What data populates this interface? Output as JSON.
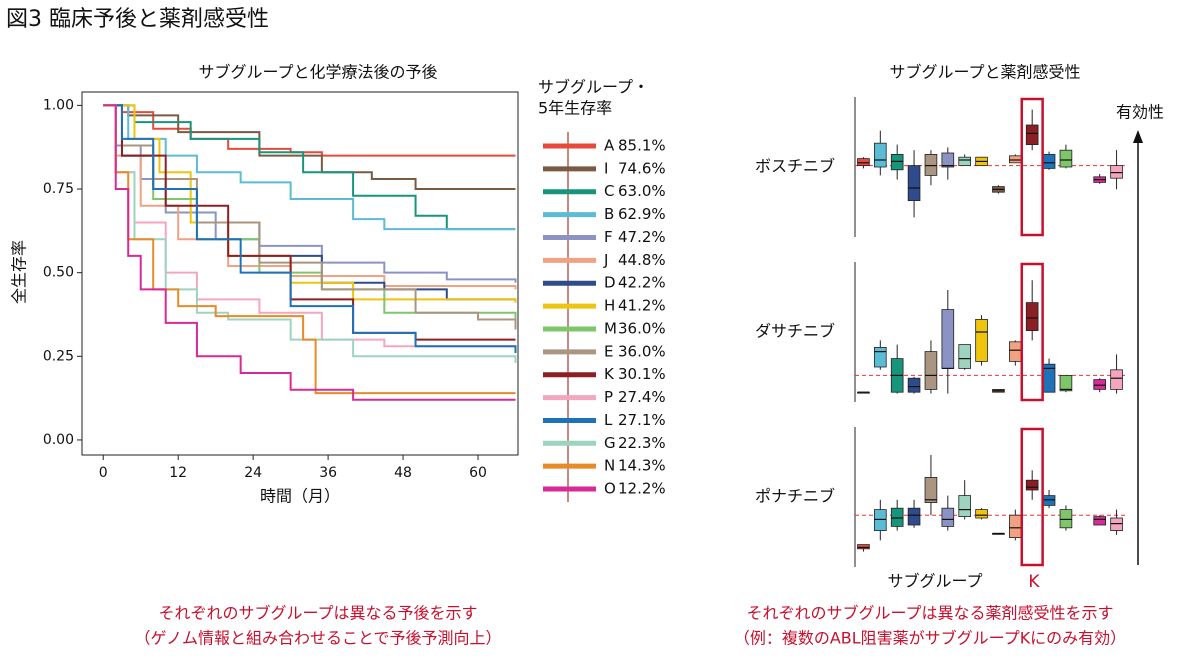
{
  "title": "図3 臨床予後と薬剤感受性",
  "chart_data": [
    {
      "type": "km",
      "title": "サブグループと化学療法後の予後",
      "xlabel": "時間（月）",
      "ylabel": "全生存率",
      "legend_title": [
        "サブグループ・",
        "5年生存率"
      ],
      "xlim": [
        -3.4,
        66.4
      ],
      "xticks": [
        0,
        12,
        24,
        36,
        48,
        60
      ],
      "ylim": [
        -0.045,
        1.04
      ],
      "yticks": [
        {
          "value": 0,
          "label": "0.00"
        },
        {
          "value": 0.25,
          "label": "0.25"
        },
        {
          "value": 0.5,
          "label": "0.50"
        },
        {
          "value": 0.75,
          "label": "0.75"
        },
        {
          "value": 1,
          "label": "1.00"
        }
      ],
      "series": [
        {
          "name": "A",
          "color": "#e8493a",
          "survival_5y": 85.1,
          "survival_5y_label": "85.1%",
          "x": [
            0,
            3,
            8,
            14,
            20,
            30,
            35,
            66
          ],
          "values": [
            1,
            0.98,
            0.93,
            0.9,
            0.87,
            0.86,
            0.85,
            0.85
          ]
        },
        {
          "name": "I",
          "color": "#7b5a43",
          "survival_5y": 74.6,
          "survival_5y_label": "74.6%",
          "x": [
            0,
            4,
            12,
            25,
            35,
            43,
            50,
            66
          ],
          "values": [
            1,
            0.97,
            0.92,
            0.85,
            0.8,
            0.78,
            0.75,
            0.75
          ]
        },
        {
          "name": "C",
          "color": "#16957a",
          "survival_5y": 63.0,
          "survival_5y_label": "63.0%",
          "x": [
            0,
            5,
            14,
            25,
            32,
            40,
            50,
            55,
            66
          ],
          "values": [
            1,
            0.95,
            0.9,
            0.86,
            0.8,
            0.73,
            0.67,
            0.63,
            0.63
          ]
        },
        {
          "name": "B",
          "color": "#5bbcd6",
          "survival_5y": 62.9,
          "survival_5y_label": "62.9%",
          "x": [
            0,
            4,
            10,
            15,
            22,
            30,
            40,
            45,
            66
          ],
          "values": [
            1,
            0.9,
            0.85,
            0.8,
            0.77,
            0.72,
            0.66,
            0.63,
            0.63
          ]
        },
        {
          "name": "F",
          "color": "#8b93c4",
          "survival_5y": 47.2,
          "survival_5y_label": "47.2%",
          "x": [
            0,
            2,
            6,
            10,
            18,
            25,
            35,
            45,
            55,
            66
          ],
          "values": [
            1,
            0.88,
            0.78,
            0.68,
            0.6,
            0.58,
            0.53,
            0.5,
            0.48,
            0.47
          ]
        },
        {
          "name": "J",
          "color": "#f0a283",
          "survival_5y": 44.8,
          "survival_5y_label": "44.8%",
          "x": [
            0,
            2,
            6,
            12,
            20,
            30,
            45,
            66
          ],
          "values": [
            1,
            0.85,
            0.7,
            0.6,
            0.52,
            0.49,
            0.46,
            0.45
          ]
        },
        {
          "name": "D",
          "color": "#2f4b8c",
          "survival_5y": 42.2,
          "survival_5y_label": "42.2%",
          "x": [
            0,
            3,
            8,
            15,
            25,
            35,
            45,
            55,
            66
          ],
          "values": [
            1,
            0.85,
            0.75,
            0.65,
            0.55,
            0.47,
            0.45,
            0.42,
            0.42
          ]
        },
        {
          "name": "H",
          "color": "#efc40e",
          "survival_5y": 41.2,
          "survival_5y_label": "41.2%",
          "x": [
            0,
            5,
            9,
            14,
            20,
            30,
            40,
            66
          ],
          "values": [
            1,
            0.9,
            0.8,
            0.65,
            0.55,
            0.47,
            0.42,
            0.41
          ]
        },
        {
          "name": "M",
          "color": "#7fc66b",
          "survival_5y": 36.0,
          "survival_5y_label": "36.0%",
          "x": [
            0,
            3,
            8,
            15,
            25,
            35,
            45,
            66
          ],
          "values": [
            1,
            0.85,
            0.72,
            0.6,
            0.5,
            0.45,
            0.38,
            0.36
          ]
        },
        {
          "name": "E",
          "color": "#a99580",
          "survival_5y": 36.0,
          "survival_5y_label": "36.0%",
          "x": [
            0,
            3,
            8,
            15,
            25,
            35,
            50,
            60,
            66
          ],
          "values": [
            1,
            0.88,
            0.78,
            0.65,
            0.53,
            0.45,
            0.38,
            0.36,
            0.33
          ]
        },
        {
          "name": "K",
          "color": "#8c1f24",
          "survival_5y": 30.1,
          "survival_5y_label": "30.1%",
          "x": [
            0,
            3,
            10,
            20,
            30,
            40,
            50,
            66
          ],
          "values": [
            1,
            0.85,
            0.7,
            0.55,
            0.42,
            0.32,
            0.3,
            0.3
          ]
        },
        {
          "name": "P",
          "color": "#f5a6bf",
          "survival_5y": 27.4,
          "survival_5y_label": "27.4%",
          "x": [
            0,
            2,
            5,
            10,
            15,
            25,
            35,
            45,
            66
          ],
          "values": [
            1,
            0.8,
            0.65,
            0.5,
            0.42,
            0.38,
            0.3,
            0.28,
            0.27
          ]
        },
        {
          "name": "L",
          "color": "#1e72b8",
          "survival_5y": 27.1,
          "survival_5y_label": "27.1%",
          "x": [
            0,
            3,
            8,
            15,
            22,
            30,
            40,
            50,
            66
          ],
          "values": [
            1,
            0.9,
            0.75,
            0.6,
            0.5,
            0.4,
            0.32,
            0.28,
            0.26
          ]
        },
        {
          "name": "G",
          "color": "#9dd4bf",
          "survival_5y": 22.3,
          "survival_5y_label": "22.3%",
          "x": [
            0,
            2,
            5,
            10,
            15,
            20,
            30,
            40,
            66
          ],
          "values": [
            1,
            0.8,
            0.6,
            0.45,
            0.38,
            0.36,
            0.3,
            0.25,
            0.23
          ]
        },
        {
          "name": "N",
          "color": "#e78a27",
          "survival_5y": 14.3,
          "survival_5y_label": "14.3%",
          "x": [
            0,
            2,
            4,
            8,
            12,
            18,
            25,
            32,
            34,
            66
          ],
          "values": [
            1,
            0.8,
            0.6,
            0.45,
            0.4,
            0.37,
            0.37,
            0.3,
            0.14,
            0.14
          ]
        },
        {
          "name": "O",
          "color": "#d62a96",
          "survival_5y": 12.2,
          "survival_5y_label": "12.2%",
          "x": [
            0,
            2,
            4,
            6,
            10,
            15,
            22,
            30,
            40,
            66
          ],
          "values": [
            1,
            0.75,
            0.55,
            0.45,
            0.35,
            0.25,
            0.2,
            0.15,
            0.12,
            0.12
          ]
        }
      ]
    },
    {
      "type": "box",
      "title": "サブグループと薬剤感受性",
      "xlabel": "サブグループ",
      "highlight_label": "K",
      "effect_label": "有効性",
      "ylim": [
        0,
        100
      ],
      "colors": [
        "#e8493a",
        "#5bbcd6",
        "#16957a",
        "#2f4b8c",
        "#a99580",
        "#8b93c4",
        "#9dd4bf",
        "#efc40e",
        "#7b5a43",
        "#f0a283",
        "#8c1f24",
        "#1e72b8",
        "#7fc66b",
        "#e78a27",
        "#d62a96",
        "#f5a6bf"
      ],
      "panels": [
        {
          "label": "ボスチニブ",
          "reference": 51,
          "boxes": [
            [
              49,
              51,
              53,
              56,
              57
            ],
            [
              44,
              50,
              55,
              67,
              76
            ],
            [
              41,
              48,
              54,
              59,
              66
            ],
            [
              14,
              26,
              35,
              51,
              62
            ],
            [
              37,
              44,
              51,
              59,
              62
            ],
            [
              41,
              50,
              51,
              60,
              64
            ],
            [
              51,
              51,
              55,
              57,
              59
            ],
            [
              51,
              51,
              54,
              57,
              57
            ],
            [
              31,
              32,
              34,
              36,
              37
            ],
            [
              53,
              53,
              55,
              58,
              59
            ],
            [
              62,
              66,
              74,
              80,
              91
            ],
            [
              48,
              49,
              53,
              59,
              61
            ],
            [
              49,
              50,
              55,
              62,
              66
            ],
            null,
            [
              38,
              39,
              41,
              43,
              45
            ],
            [
              34,
              42,
              46,
              51,
              62
            ]
          ]
        },
        {
          "label": "ダサチニブ",
          "reference": 19,
          "boxes": [
            [
              7,
              7,
              7,
              7,
              7
            ],
            [
              23,
              25,
              36,
              39,
              44
            ],
            [
              6,
              7,
              19,
              31,
              41
            ],
            [
              6,
              7,
              11,
              17,
              18
            ],
            [
              6,
              9,
              19,
              36,
              44
            ],
            [
              6,
              24,
              24,
              66,
              80
            ],
            [
              23,
              24,
              31,
              41,
              41
            ],
            [
              26,
              29,
              50,
              59,
              62
            ],
            [
              7,
              7,
              8,
              9,
              9
            ],
            [
              26,
              29,
              37,
              43,
              44
            ],
            [
              44,
              51,
              60,
              71,
              87
            ],
            [
              7,
              7,
              24,
              27,
              31
            ],
            [
              7,
              8,
              9,
              19,
              19
            ],
            null,
            [
              7,
              9,
              12,
              16,
              17
            ],
            [
              6,
              9,
              17,
              23,
              34
            ]
          ]
        },
        {
          "label": "ポナチニブ",
          "reference": 37,
          "boxes": [
            [
              11,
              13,
              14,
              16,
              16
            ],
            [
              19,
              26,
              34,
              41,
              48
            ],
            [
              26,
              29,
              35,
              42,
              48
            ],
            [
              28,
              30,
              37,
              42,
              48
            ],
            [
              37,
              46,
              48,
              64,
              80
            ],
            [
              26,
              29,
              34,
              42,
              51
            ],
            [
              34,
              36,
              41,
              51,
              62
            ],
            [
              34,
              35,
              37,
              41,
              42
            ],
            [
              24,
              24,
              24,
              24,
              24
            ],
            [
              19,
              21,
              28,
              37,
              41
            ],
            [
              48,
              55,
              57,
              62,
              69
            ],
            [
              42,
              44,
              48,
              51,
              55
            ],
            [
              26,
              28,
              34,
              41,
              44
            ],
            null,
            [
              30,
              30,
              34,
              36,
              37
            ],
            [
              23,
              26,
              31,
              35,
              41
            ]
          ]
        }
      ]
    }
  ],
  "notes": [
    [
      "それぞれのサブグループは異なる予後を示す",
      "（ゲノム情報と組み合わせることで予後予測向上）"
    ],
    [
      "それぞれのサブグループは異なる薬剤感受性を示す",
      "（例：複数のABL阻害薬がサブグループKにのみ有効）"
    ]
  ]
}
